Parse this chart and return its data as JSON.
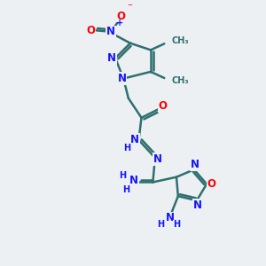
{
  "bg_color": "#edf0f2",
  "bond_color": "#2e7070",
  "bond_width": 1.8,
  "atom_colors": {
    "N": "#1414ff",
    "O": "#ff0000",
    "C": "#2e7070",
    "H": "#2e7070"
  },
  "font_size": 8.5,
  "font_size_small": 7.0,
  "fig_width": 3.0,
  "fig_height": 3.0,
  "dpi": 100
}
